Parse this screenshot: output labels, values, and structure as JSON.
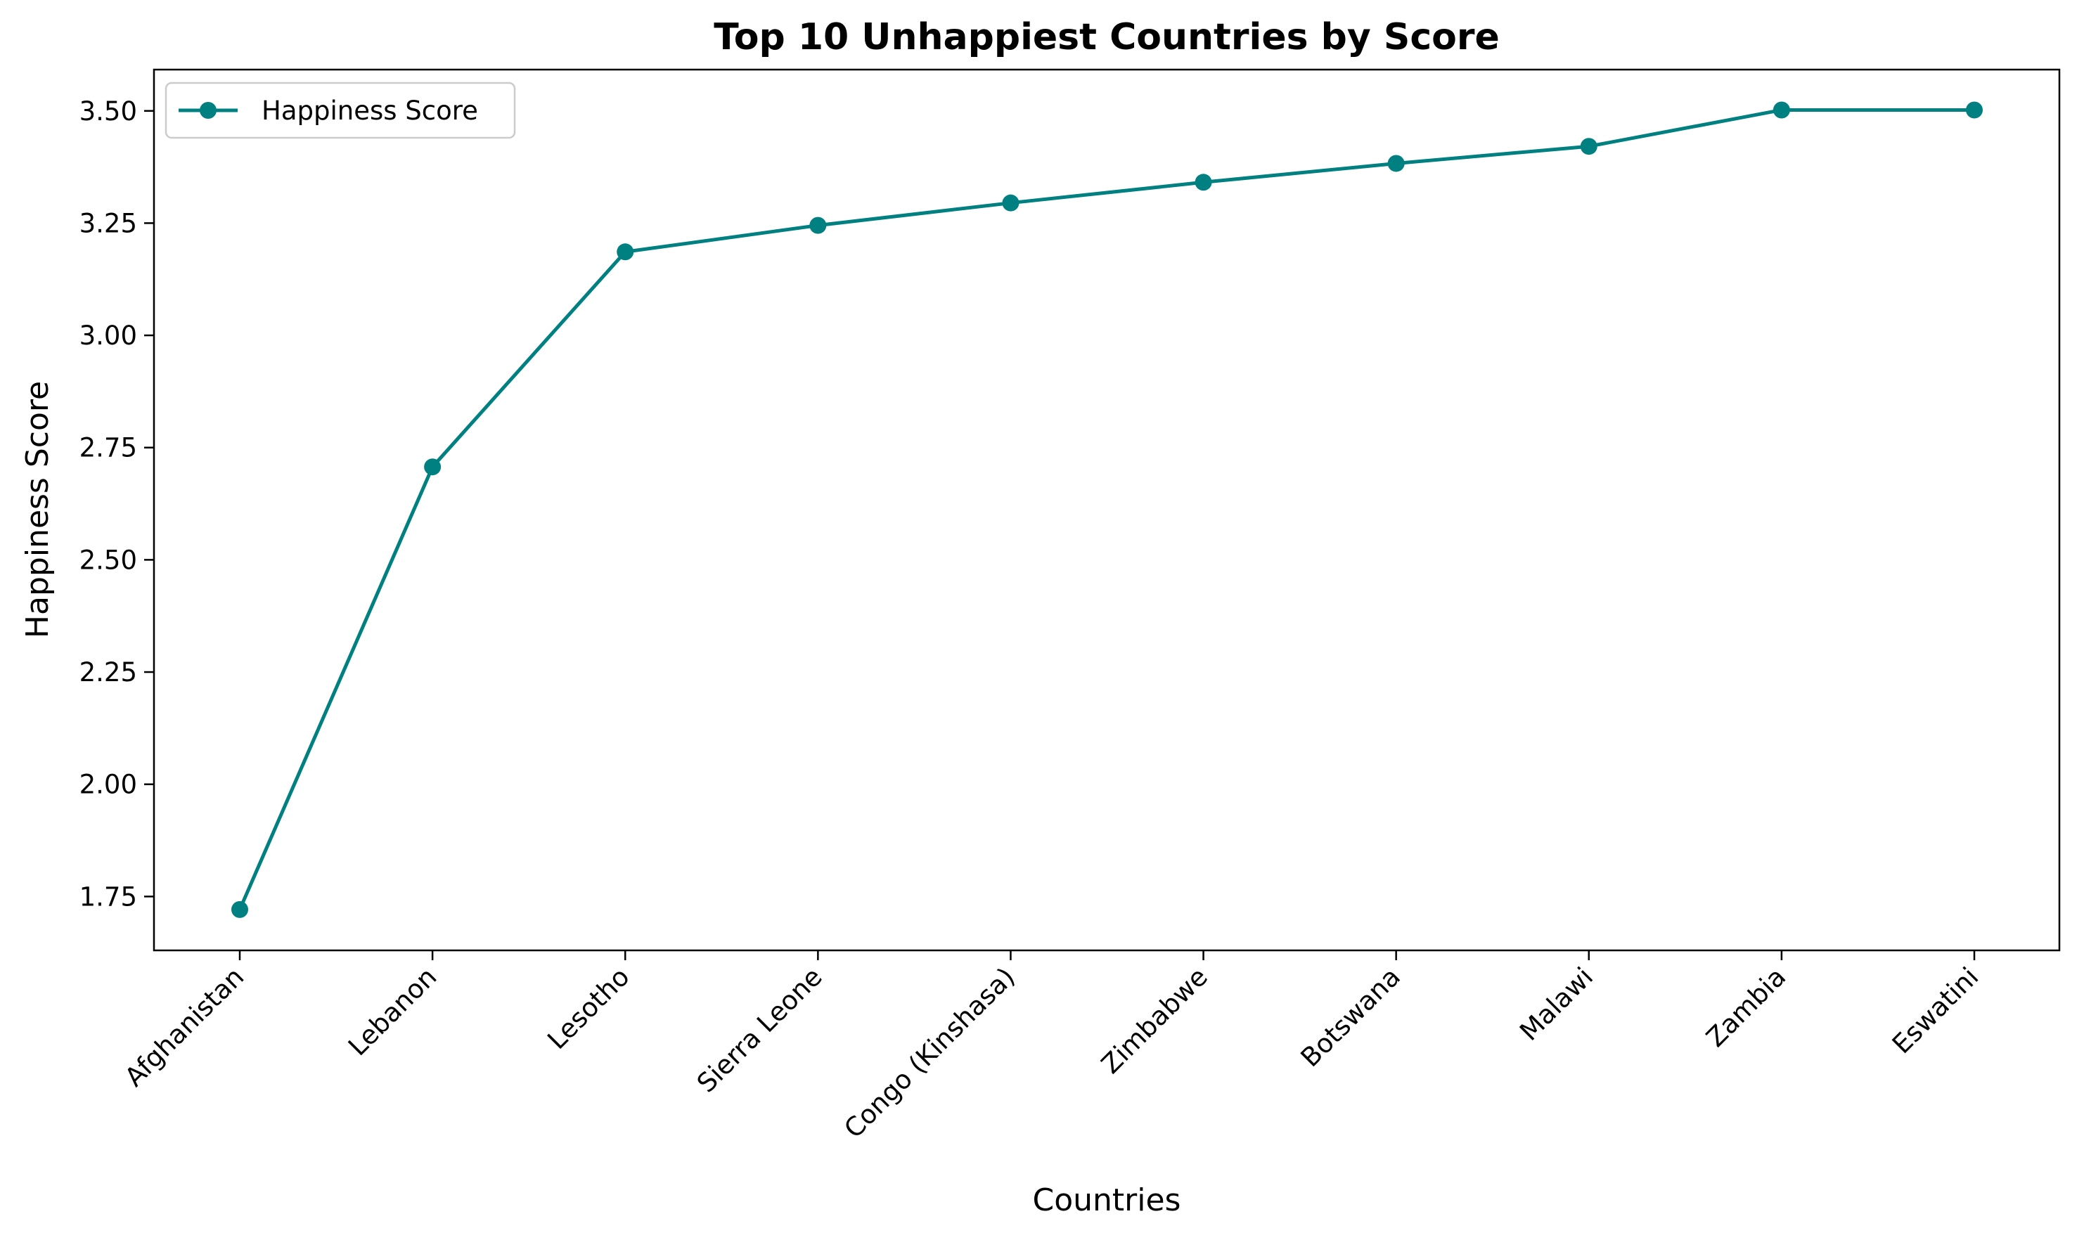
{
  "chart_data": {
    "type": "line",
    "title": "Top 10 Unhappiest Countries by Score",
    "xlabel": "Countries",
    "ylabel": "Happiness Score",
    "categories": [
      "Afghanistan",
      "Lebanon",
      "Lesotho",
      "Sierra Leone",
      "Congo (Kinshasa)",
      "Zimbabwe",
      "Botswana",
      "Malawi",
      "Zambia",
      "Eswatini"
    ],
    "series": [
      {
        "name": "Happiness Score",
        "values": [
          1.721,
          2.707,
          3.186,
          3.245,
          3.295,
          3.341,
          3.383,
          3.421,
          3.502,
          3.502
        ],
        "color": "#008080"
      }
    ],
    "yticks": [
      "1.75",
      "2.00",
      "2.25",
      "2.50",
      "2.75",
      "3.00",
      "3.25",
      "3.50"
    ],
    "ylim": [
      1.63,
      3.592
    ],
    "grid": false,
    "legend_position": "top-left"
  }
}
